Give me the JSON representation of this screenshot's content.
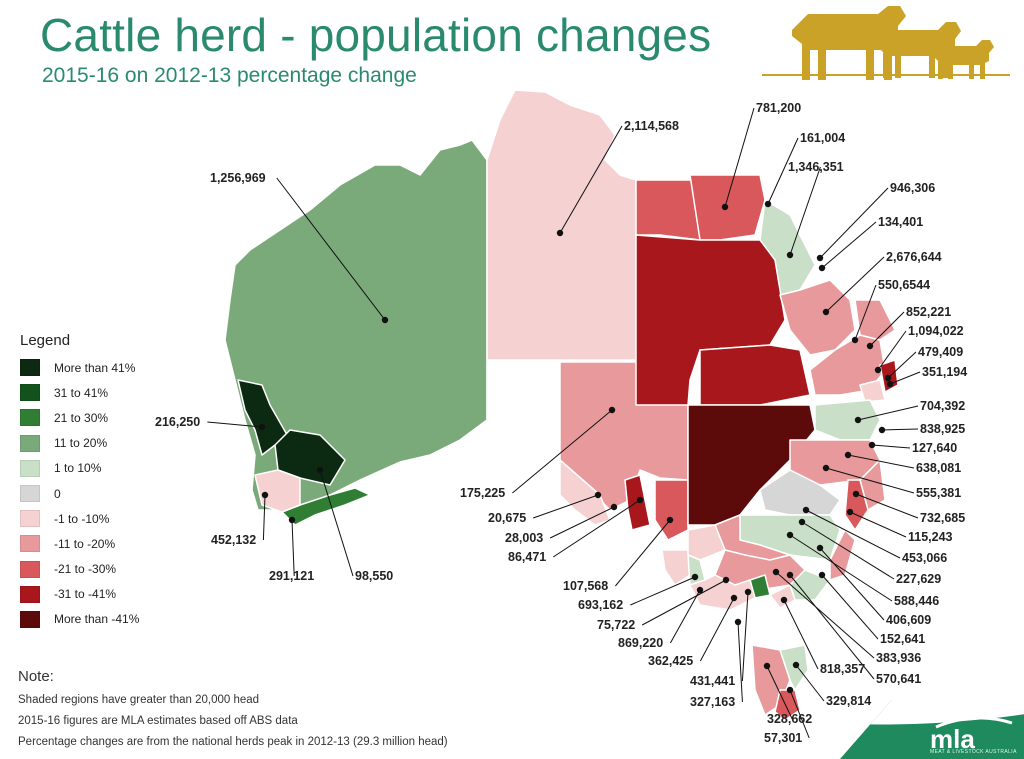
{
  "title": "Cattle herd - population changes",
  "subtitle": "2015-16 on 2012-13 percentage change",
  "colors": {
    "title": "#2a8a6e",
    "more_than_41": "#0c2a12",
    "p31_41": "#12521d",
    "p21_30": "#2f7e34",
    "p11_20": "#7aa97a",
    "p1_10": "#c9dfc7",
    "zero": "#d6d6d6",
    "m1_10": "#f5d1d1",
    "m11_20": "#e8999b",
    "m21_30": "#d9585c",
    "m31_41": "#a8171c",
    "less_than_41": "#5d0a0b",
    "brand_green": "#1e8a5e",
    "cattle_gold": "#c9a227"
  },
  "legend": {
    "title": "Legend",
    "items": [
      {
        "label": "More than 41%",
        "color": "#0c2a12"
      },
      {
        "label": "31 to 41%",
        "color": "#12521d"
      },
      {
        "label": "21 to 30%",
        "color": "#2f7e34"
      },
      {
        "label": "11 to 20%",
        "color": "#7aa97a"
      },
      {
        "label": "1 to 10%",
        "color": "#c9dfc7"
      },
      {
        "label": "0",
        "color": "#d6d6d6"
      },
      {
        "label": "-1 to -10%",
        "color": "#f5d1d1"
      },
      {
        "label": "-11 to -20%",
        "color": "#e8999b"
      },
      {
        "label": "-21 to -30%",
        "color": "#d9585c"
      },
      {
        "label": "-31 to -41%",
        "color": "#a8171c"
      },
      {
        "label": "More than -41%",
        "color": "#5d0a0b"
      }
    ]
  },
  "note": {
    "heading": "Note:",
    "lines": [
      "Shaded regions have  greater than 20,000 head",
      "2015-16 figures are MLA estimates based off ABS data",
      "Percentage changes are from the national herds peak in 2012-13  (29.3 million head)"
    ]
  },
  "brand": {
    "logo_text": "mla",
    "logo_subtext": "MEAT & LIVESTOCK AUSTRALIA"
  },
  "map_labels": [
    "1,256,969",
    "2,114,568",
    "781,200",
    "161,004",
    "1,346,351",
    "946,306",
    "134,401",
    "2,676,644",
    "550,6544",
    "852,221",
    "1,094,022",
    "479,409",
    "351,194",
    "704,392",
    "838,925",
    "127,640",
    "638,081",
    "555,381",
    "732,685",
    "115,243",
    "453,066",
    "227,629",
    "588,446",
    "406,609",
    "152,641",
    "383,936",
    "570,641",
    "818,357",
    "329,814",
    "328,662",
    "57,301",
    "327,163",
    "431,441",
    "362,425",
    "869,220",
    "75,722",
    "693,162",
    "107,568",
    "86,471",
    "28,003",
    "20,675",
    "175,225",
    "216,250",
    "452,132",
    "291,121",
    "98,550"
  ]
}
